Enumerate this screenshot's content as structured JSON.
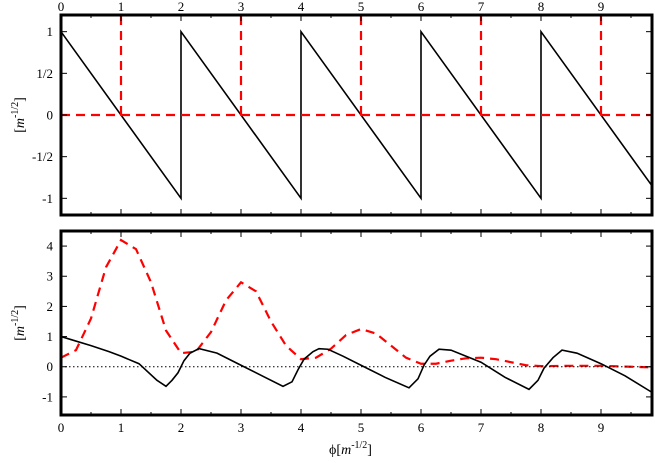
{
  "chart_data": [
    {
      "type": "line",
      "panel": "top",
      "xlim": [
        0,
        9.85
      ],
      "ylim": [
        -1.2,
        1.2
      ],
      "x_ticks": [
        "0",
        "1",
        "2",
        "3",
        "4",
        "5",
        "6",
        "7",
        "8",
        "9"
      ],
      "y_ticks": [
        {
          "value": 1,
          "label": "1"
        },
        {
          "value": 0.5,
          "label": "1/2"
        },
        {
          "value": 0,
          "label": "0"
        },
        {
          "value": -0.5,
          "label": "-1/2"
        },
        {
          "value": -1,
          "label": "-1"
        }
      ],
      "ylabel": {
        "open": "[",
        "unit": "m",
        "exp": "-1/2",
        "close": "]"
      },
      "xlabel": "",
      "series": [
        {
          "color": "#000000",
          "style": "solid",
          "points": [
            [
              0,
              1
            ],
            [
              2,
              -1
            ],
            [
              2,
              1
            ],
            [
              4,
              -1
            ],
            [
              4,
              1
            ],
            [
              6,
              -1
            ],
            [
              6,
              1
            ],
            [
              8,
              -1
            ],
            [
              8,
              1
            ],
            [
              9.85,
              -0.85
            ]
          ]
        },
        {
          "color": "#ff0000",
          "style": "dashed",
          "points": [
            [
              0,
              0
            ],
            [
              9.85,
              0
            ]
          ]
        },
        {
          "color": "#ff0000",
          "style": "dashed",
          "segments": [
            [
              [
                1,
                0
              ],
              [
                1,
                1.2
              ]
            ],
            [
              [
                3,
                0
              ],
              [
                3,
                1.2
              ]
            ],
            [
              [
                5,
                0
              ],
              [
                5,
                1.2
              ]
            ],
            [
              [
                7,
                0
              ],
              [
                7,
                1.2
              ]
            ],
            [
              [
                9,
                0
              ],
              [
                9,
                1.2
              ]
            ]
          ]
        }
      ]
    },
    {
      "type": "line",
      "panel": "bottom",
      "xlim": [
        0,
        9.85
      ],
      "ylim": [
        -1.6,
        4.5
      ],
      "x_ticks": [
        "0",
        "1",
        "2",
        "3",
        "4",
        "5",
        "6",
        "7",
        "8",
        "9"
      ],
      "y_ticks": [
        {
          "value": 4,
          "label": "4"
        },
        {
          "value": 3,
          "label": "3"
        },
        {
          "value": 2,
          "label": "2"
        },
        {
          "value": 1,
          "label": "1"
        },
        {
          "value": 0,
          "label": "0"
        },
        {
          "value": -1,
          "label": "-1"
        }
      ],
      "ylabel": {
        "open": "[",
        "unit": "m",
        "exp": "-1/2",
        "close": "]"
      },
      "xlabel": {
        "symbol": "ϕ",
        "open": "[",
        "unit": "m",
        "exp": "-1/2",
        "close": "]"
      },
      "series": [
        {
          "color": "#ff0000",
          "style": "dashed",
          "points": [
            [
              0,
              0.3
            ],
            [
              0.25,
              0.55
            ],
            [
              0.5,
              1.6
            ],
            [
              0.75,
              3.3
            ],
            [
              1,
              4.2
            ],
            [
              1.25,
              3.9
            ],
            [
              1.5,
              2.8
            ],
            [
              1.75,
              1.2
            ],
            [
              2,
              0.45
            ],
            [
              2.25,
              0.5
            ],
            [
              2.5,
              1.15
            ],
            [
              2.75,
              2.2
            ],
            [
              3,
              2.8
            ],
            [
              3.25,
              2.5
            ],
            [
              3.5,
              1.5
            ],
            [
              3.75,
              0.7
            ],
            [
              4,
              0.25
            ],
            [
              4.25,
              0.3
            ],
            [
              4.5,
              0.6
            ],
            [
              4.75,
              1.05
            ],
            [
              5,
              1.25
            ],
            [
              5.25,
              1.1
            ],
            [
              5.5,
              0.7
            ],
            [
              5.75,
              0.3
            ],
            [
              6,
              0.1
            ],
            [
              6.25,
              0.1
            ],
            [
              6.5,
              0.2
            ],
            [
              6.75,
              0.28
            ],
            [
              7,
              0.3
            ],
            [
              7.25,
              0.25
            ],
            [
              7.5,
              0.15
            ],
            [
              7.75,
              0.05
            ],
            [
              8,
              0.02
            ],
            [
              8.5,
              0.03
            ],
            [
              9,
              0.03
            ],
            [
              9.5,
              0.0
            ],
            [
              9.85,
              -0.02
            ]
          ]
        },
        {
          "color": "#000000",
          "style": "solid",
          "points": [
            [
              0,
              1
            ],
            [
              0.2,
              0.88
            ],
            [
              0.5,
              0.7
            ],
            [
              0.8,
              0.5
            ],
            [
              1,
              0.35
            ],
            [
              1.3,
              0.1
            ],
            [
              1.6,
              -0.45
            ],
            [
              1.75,
              -0.65
            ],
            [
              1.85,
              -0.45
            ],
            [
              1.95,
              -0.2
            ],
            [
              2.05,
              0.2
            ],
            [
              2.15,
              0.45
            ],
            [
              2.3,
              0.6
            ],
            [
              2.6,
              0.45
            ],
            [
              3,
              0.05
            ],
            [
              3.4,
              -0.35
            ],
            [
              3.7,
              -0.65
            ],
            [
              3.85,
              -0.5
            ],
            [
              3.95,
              -0.1
            ],
            [
              4.05,
              0.25
            ],
            [
              4.2,
              0.5
            ],
            [
              4.3,
              0.6
            ],
            [
              4.45,
              0.58
            ],
            [
              4.7,
              0.35
            ],
            [
              5,
              0.05
            ],
            [
              5.4,
              -0.35
            ],
            [
              5.8,
              -0.7
            ],
            [
              5.95,
              -0.4
            ],
            [
              6.05,
              0.05
            ],
            [
              6.15,
              0.35
            ],
            [
              6.3,
              0.58
            ],
            [
              6.5,
              0.55
            ],
            [
              7,
              0.15
            ],
            [
              7.4,
              -0.35
            ],
            [
              7.8,
              -0.75
            ],
            [
              7.95,
              -0.45
            ],
            [
              8.05,
              -0.05
            ],
            [
              8.2,
              0.3
            ],
            [
              8.35,
              0.55
            ],
            [
              8.6,
              0.45
            ],
            [
              9,
              0.1
            ],
            [
              9.4,
              -0.3
            ],
            [
              9.85,
              -0.85
            ]
          ]
        },
        {
          "color": "#000000",
          "style": "dotted",
          "points": [
            [
              0,
              0
            ],
            [
              9.85,
              0
            ]
          ]
        }
      ]
    }
  ]
}
